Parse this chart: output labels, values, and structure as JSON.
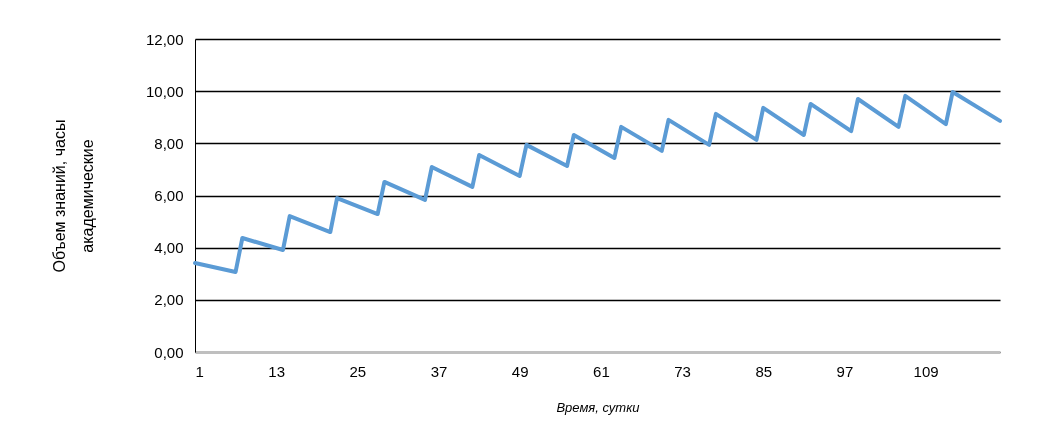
{
  "chart_data": {
    "type": "line",
    "xlabel": "Время, сутки",
    "ylabel": "Объем знаний, часы академические",
    "xlim": [
      1,
      120
    ],
    "xticks": [
      1,
      13,
      25,
      37,
      49,
      61,
      73,
      85,
      97,
      109
    ],
    "ylim": [
      0,
      12
    ],
    "yticks": [
      {
        "value": 0,
        "label": "0,00"
      },
      {
        "value": 2,
        "label": "2,00"
      },
      {
        "value": 4,
        "label": "4,00"
      },
      {
        "value": 6,
        "label": "6,00"
      },
      {
        "value": 8,
        "label": "8,00"
      },
      {
        "value": 10,
        "label": "10,00"
      },
      {
        "value": 12,
        "label": "12,00"
      }
    ],
    "grid": "y",
    "marker": "none",
    "line_style": "solid",
    "series": [
      {
        "color": "#5b9bd5",
        "x": [
          1,
          7,
          8,
          14,
          15,
          21,
          22,
          28,
          29,
          35,
          36,
          42,
          43,
          49,
          50,
          56,
          57,
          63,
          64,
          70,
          71,
          77,
          78,
          84,
          85,
          91,
          92,
          98,
          99,
          105,
          106,
          112,
          113,
          120
        ],
        "values": [
          3.41,
          3.07,
          4.37,
          3.91,
          5.21,
          4.6,
          5.9,
          5.29,
          6.52,
          5.83,
          7.09,
          6.33,
          7.55,
          6.75,
          7.94,
          7.13,
          8.32,
          7.44,
          8.63,
          7.71,
          8.9,
          7.94,
          9.13,
          8.13,
          9.36,
          8.32,
          9.51,
          8.47,
          9.7,
          8.63,
          9.82,
          8.74,
          9.97,
          8.86
        ]
      }
    ]
  }
}
